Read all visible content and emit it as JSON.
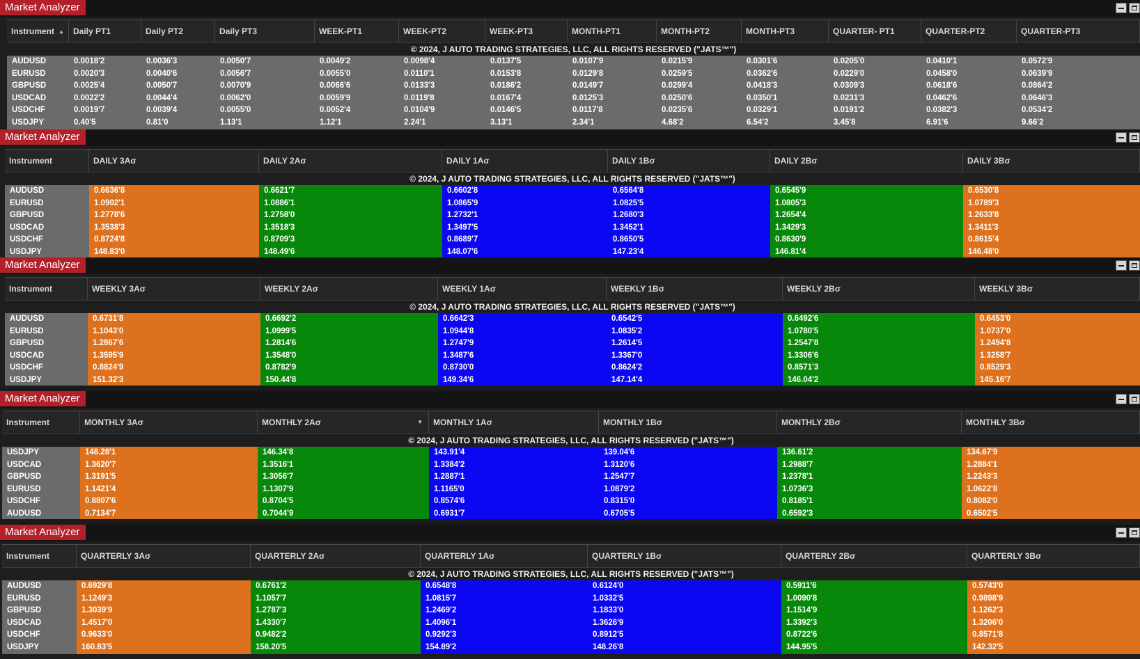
{
  "app_title": "Market Analyzer",
  "copyright": "© 2024, J AUTO TRADING STRATEGIES, LLC, ALL RIGHTS RESERVED (\"JATS™\")",
  "colors": {
    "orange": "#de711e",
    "green": "#08880a",
    "blue": "#0c07f2",
    "gray": "#6b6b6b",
    "title_red": "#b4202a"
  },
  "icons": {
    "sort": "sort-ascending-icon",
    "dropdown": "chevron-down-icon",
    "minimize": "minimize-icon",
    "maximize": "maximize-icon"
  },
  "panels": [
    {
      "columns": [
        "Instrument",
        "Daily PT1",
        "Daily PT2",
        "Daily PT3",
        "WEEK-PT1",
        "WEEK-PT2",
        "WEEK-PT3",
        "MONTH-PT1",
        "MONTH-PT2",
        "MONTH-PT3",
        "QUARTER- PT1",
        "QUARTER-PT2",
        "QUARTER-PT3"
      ],
      "rows": [
        {
          "instrument": "AUDUSD",
          "values": [
            "0.0018'2",
            "0.0036'3",
            "0.0050'7",
            "0.0049'2",
            "0.0098'4",
            "0.0137'5",
            "0.0107'9",
            "0.0215'9",
            "0.0301'6",
            "0.0205'0",
            "0.0410'1",
            "0.0572'9"
          ]
        },
        {
          "instrument": "EURUSD",
          "values": [
            "0.0020'3",
            "0.0040'6",
            "0.0056'7",
            "0.0055'0",
            "0.0110'1",
            "0.0153'8",
            "0.0129'8",
            "0.0259'5",
            "0.0362'6",
            "0.0229'0",
            "0.0458'0",
            "0.0639'9"
          ]
        },
        {
          "instrument": "GBPUSD",
          "values": [
            "0.0025'4",
            "0.0050'7",
            "0.0070'9",
            "0.0066'6",
            "0.0133'3",
            "0.0186'2",
            "0.0149'7",
            "0.0299'4",
            "0.0418'3",
            "0.0309'3",
            "0.0618'6",
            "0.0864'2"
          ]
        },
        {
          "instrument": "USDCAD",
          "values": [
            "0.0022'2",
            "0.0044'4",
            "0.0062'0",
            "0.0059'9",
            "0.0119'8",
            "0.0167'4",
            "0.0125'3",
            "0.0250'6",
            "0.0350'1",
            "0.0231'3",
            "0.0462'6",
            "0.0646'3"
          ]
        },
        {
          "instrument": "USDCHF",
          "values": [
            "0.0019'7",
            "0.0039'4",
            "0.0055'0",
            "0.0052'4",
            "0.0104'9",
            "0.0146'5",
            "0.0117'8",
            "0.0235'6",
            "0.0329'1",
            "0.0191'2",
            "0.0382'3",
            "0.0534'2"
          ]
        },
        {
          "instrument": "USDJPY",
          "values": [
            "0.40'5",
            "0.81'0",
            "1.13'1",
            "1.12'1",
            "2.24'1",
            "3.13'1",
            "2.34'1",
            "4.68'2",
            "6.54'2",
            "3.45'8",
            "6.91'6",
            "9.66'2"
          ]
        }
      ]
    },
    {
      "columns": [
        "Instrument",
        "DAILY 3Aσ",
        "DAILY 2Aσ",
        "DAILY 1Aσ",
        "DAILY 1Bσ",
        "DAILY 2Bσ",
        "DAILY 3Bσ"
      ],
      "rows": [
        {
          "instrument": "AUDUSD",
          "values": [
            "0.6636'8",
            "0.6621'7",
            "0.6602'8",
            "0.6564'8",
            "0.6545'9",
            "0.6530'8"
          ]
        },
        {
          "instrument": "EURUSD",
          "values": [
            "1.0902'1",
            "1.0886'1",
            "1.0865'9",
            "1.0825'5",
            "1.0805'3",
            "1.0789'3"
          ]
        },
        {
          "instrument": "GBPUSD",
          "values": [
            "1.2778'6",
            "1.2758'0",
            "1.2732'1",
            "1.2680'3",
            "1.2654'4",
            "1.2633'8"
          ]
        },
        {
          "instrument": "USDCAD",
          "values": [
            "1.3538'3",
            "1.3518'3",
            "1.3497'5",
            "1.3452'1",
            "1.3429'3",
            "1.3411'3"
          ]
        },
        {
          "instrument": "USDCHF",
          "values": [
            "0.8724'8",
            "0.8709'3",
            "0.8689'7",
            "0.8650'5",
            "0.8630'9",
            "0.8615'4"
          ]
        },
        {
          "instrument": "USDJPY",
          "values": [
            "148.83'0",
            "148.49'6",
            "148.07'6",
            "147.23'4",
            "146.81'4",
            "146.48'0"
          ]
        }
      ]
    },
    {
      "columns": [
        "Instrument",
        "WEEKLY 3Aσ",
        "WEEKLY 2Aσ",
        "WEEKLY 1Aσ",
        "WEEKLY 1Bσ",
        "WEEKLY 2Bσ",
        "WEEKLY 3Bσ"
      ],
      "rows": [
        {
          "instrument": "AUDUSD",
          "values": [
            "0.6731'8",
            "0.6692'2",
            "0.6642'3",
            "0.6542'5",
            "0.6492'6",
            "0.6453'0"
          ]
        },
        {
          "instrument": "EURUSD",
          "values": [
            "1.1043'0",
            "1.0999'5",
            "1.0944'8",
            "1.0835'2",
            "1.0780'5",
            "1.0737'0"
          ]
        },
        {
          "instrument": "GBPUSD",
          "values": [
            "1.2867'6",
            "1.2814'6",
            "1.2747'9",
            "1.2614'5",
            "1.2547'8",
            "1.2494'8"
          ]
        },
        {
          "instrument": "USDCAD",
          "values": [
            "1.3595'9",
            "1.3548'0",
            "1.3487'6",
            "1.3367'0",
            "1.3306'6",
            "1.3258'7"
          ]
        },
        {
          "instrument": "USDCHF",
          "values": [
            "0.8824'9",
            "0.8782'9",
            "0.8730'0",
            "0.8624'2",
            "0.8571'3",
            "0.8529'3"
          ]
        },
        {
          "instrument": "USDJPY",
          "values": [
            "151.32'3",
            "150.44'8",
            "149.34'6",
            "147.14'4",
            "146.04'2",
            "145.16'7"
          ]
        }
      ]
    },
    {
      "columns": [
        "Instrument",
        "MONTHLY 3Aσ",
        "MONTHLY 2Aσ",
        "MONTHLY 1Aσ",
        "MONTHLY 1Bσ",
        "MONTHLY 2Bσ",
        "MONTHLY 3Bσ"
      ],
      "rows": [
        {
          "instrument": "USDJPY",
          "values": [
            "148.28'1",
            "146.34'8",
            "143.91'4",
            "139.04'6",
            "136.61'2",
            "134.67'9"
          ]
        },
        {
          "instrument": "USDCAD",
          "values": [
            "1.3620'7",
            "1.3516'1",
            "1.3384'2",
            "1.3120'6",
            "1.2988'7",
            "1.2884'1"
          ]
        },
        {
          "instrument": "GBPUSD",
          "values": [
            "1.3191'5",
            "1.3056'7",
            "1.2887'1",
            "1.2547'7",
            "1.2378'1",
            "1.2243'3"
          ]
        },
        {
          "instrument": "EURUSD",
          "values": [
            "1.1421'4",
            "1.1307'9",
            "1.1165'0",
            "1.0879'2",
            "1.0736'3",
            "1.0622'8"
          ]
        },
        {
          "instrument": "USDCHF",
          "values": [
            "0.8807'6",
            "0.8704'5",
            "0.8574'6",
            "0.8315'0",
            "0.8185'1",
            "0.8082'0"
          ]
        },
        {
          "instrument": "AUDUSD",
          "values": [
            "0.7134'7",
            "0.7044'9",
            "0.6931'7",
            "0.6705'5",
            "0.6592'3",
            "0.6502'5"
          ]
        }
      ]
    },
    {
      "columns": [
        "Instrument",
        "QUARTERLY 3Aσ",
        "QUARTERLY 2Aσ",
        "QUARTERLY 1Aσ",
        "QUARTERLY 1Bσ",
        "QUARTERLY 2Bσ",
        "QUARTERLY 3Bσ"
      ],
      "rows": [
        {
          "instrument": "AUDUSD",
          "values": [
            "0.6929'8",
            "0.6761'2",
            "0.6548'8",
            "0.6124'0",
            "0.5911'6",
            "0.5743'0"
          ]
        },
        {
          "instrument": "EURUSD",
          "values": [
            "1.1249'3",
            "1.1057'7",
            "1.0815'7",
            "1.0332'5",
            "1.0090'8",
            "0.9898'9"
          ]
        },
        {
          "instrument": "GBPUSD",
          "values": [
            "1.3039'9",
            "1.2787'3",
            "1.2469'2",
            "1.1833'0",
            "1.1514'9",
            "1.1262'3"
          ]
        },
        {
          "instrument": "USDCAD",
          "values": [
            "1.4517'0",
            "1.4330'7",
            "1.4096'1",
            "1.3626'9",
            "1.3392'3",
            "1.3206'0"
          ]
        },
        {
          "instrument": "USDCHF",
          "values": [
            "0.9633'0",
            "0.9482'2",
            "0.9292'3",
            "0.8912'5",
            "0.8722'6",
            "0.8571'8"
          ]
        },
        {
          "instrument": "USDJPY",
          "values": [
            "160.83'5",
            "158.20'5",
            "154.89'2",
            "148.26'8",
            "144.95'5",
            "142.32'5"
          ]
        }
      ]
    }
  ]
}
